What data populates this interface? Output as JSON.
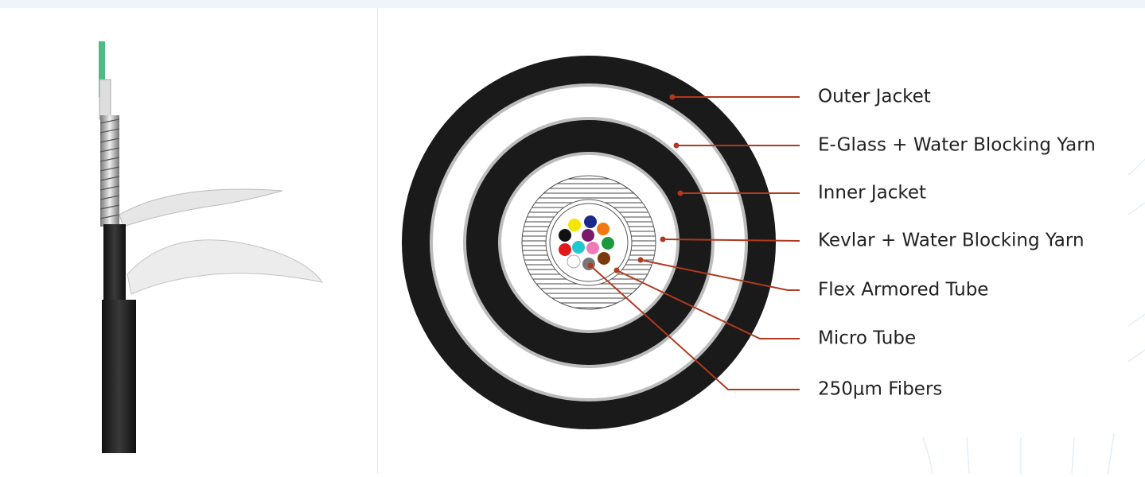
{
  "labels": [
    "Outer Jacket",
    "E-Glass + Water Blocking Yarn",
    "Inner Jacket",
    "Kevlar + Water Blocking Yarn",
    "Flex Armored Tube",
    "Micro Tube",
    "250μm Fibers"
  ]
}
